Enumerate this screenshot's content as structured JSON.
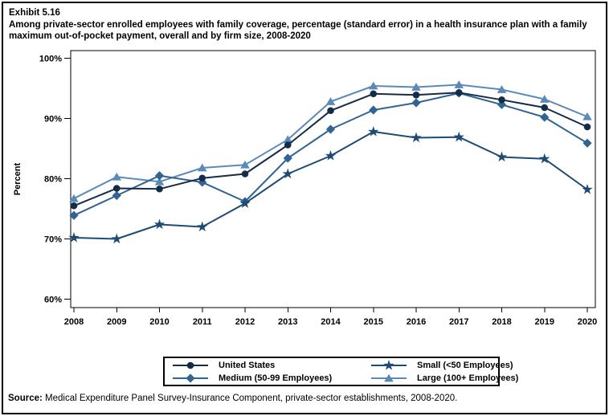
{
  "header": {
    "exhibit_label": "Exhibit 5.16",
    "title": "Among private-sector enrolled employees with family coverage, percentage (standard error) in a health insurance plan with a family maximum out-of-pocket payment, overall and by firm size, 2008-2020"
  },
  "chart_data": {
    "type": "line",
    "x": [
      2008,
      2009,
      2010,
      2011,
      2012,
      2013,
      2014,
      2015,
      2016,
      2017,
      2018,
      2019,
      2020
    ],
    "series": [
      {
        "name": "Large (100+ Employees)",
        "marker": "triangle",
        "color": "#5C8AB8",
        "values": [
          76.7,
          80.3,
          79.5,
          81.8,
          82.3,
          86.5,
          92.8,
          95.4,
          95.2,
          95.6,
          94.8,
          93.2,
          90.3
        ]
      },
      {
        "name": "Medium (50-99 Employees)",
        "marker": "diamond",
        "color": "#2F6493",
        "values": [
          73.9,
          77.2,
          80.5,
          79.4,
          76.2,
          83.4,
          88.2,
          91.4,
          92.6,
          94.2,
          92.3,
          90.2,
          85.9
        ]
      },
      {
        "name": "Small (<50 Employees)",
        "marker": "star",
        "color": "#1E4B74",
        "values": [
          70.2,
          70.0,
          72.4,
          72.0,
          75.9,
          80.8,
          83.8,
          87.8,
          86.8,
          86.9,
          83.6,
          83.3,
          78.2
        ]
      },
      {
        "name": "United States",
        "marker": "circle",
        "color": "#152C47",
        "values": [
          75.5,
          78.4,
          78.3,
          80.1,
          80.8,
          85.6,
          91.3,
          94.1,
          93.9,
          94.3,
          93.1,
          91.8,
          88.6
        ]
      }
    ],
    "title": "Among private-sector enrolled employees with family coverage, percentage (standard error) in a health insurance plan with a family maximum out-of-pocket payment, overall and by firm size, 2008-2020",
    "xlabel": "",
    "ylabel": "Percent",
    "yticks": [
      "100%",
      "90%",
      "80%",
      "70%",
      "60%"
    ],
    "ytick_values": [
      100,
      90,
      80,
      70,
      60
    ],
    "ylim": [
      58.6,
      101.3
    ],
    "grid": false,
    "legend_position": "bottom"
  },
  "legend": {
    "items": [
      {
        "label": "United States",
        "marker": "circle",
        "color": "#152C47"
      },
      {
        "label": "Small (<50 Employees)",
        "marker": "star",
        "color": "#1E4B74"
      },
      {
        "label": "Medium (50-99 Employees)",
        "marker": "diamond",
        "color": "#2F6493"
      },
      {
        "label": "Large (100+ Employees)",
        "marker": "triangle",
        "color": "#5C8AB8"
      }
    ]
  },
  "source": {
    "label": "Source:",
    "text": " Medical Expenditure Panel Survey-Insurance Component, private-sector establishments, 2008-2020."
  }
}
